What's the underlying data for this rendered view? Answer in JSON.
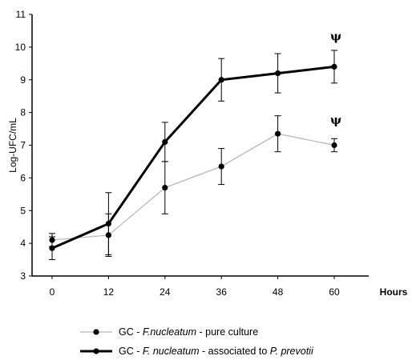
{
  "chart_data": {
    "type": "line",
    "ylabel": "Log-UFC/mL",
    "xlabel": "Hours",
    "x": [
      0,
      12,
      24,
      36,
      48,
      60
    ],
    "x_ticks": [
      "0",
      "12",
      "24",
      "36",
      "48",
      "60"
    ],
    "y_ticks": [
      "3",
      "4",
      "5",
      "6",
      "7",
      "8",
      "9",
      "10",
      "11"
    ],
    "xlim": [
      0,
      60
    ],
    "ylim": [
      3,
      11
    ],
    "grid": false,
    "legend_position": "bottom",
    "series": [
      {
        "name_parts": [
          "GC - ",
          "F.nucleatum",
          " - pure culture"
        ],
        "values": [
          4.1,
          4.25,
          5.7,
          6.35,
          7.35,
          7.0
        ],
        "errors": [
          0.2,
          0.65,
          0.8,
          0.55,
          0.55,
          0.2
        ],
        "color": "#b4b4b4"
      },
      {
        "name_parts": [
          "GC - ",
          "F. nucleatum",
          " - associated to ",
          "P. prevotii"
        ],
        "values": [
          3.85,
          4.6,
          7.1,
          9.0,
          9.2,
          9.4
        ],
        "errors": [
          0.35,
          0.95,
          0.6,
          0.65,
          0.6,
          0.5
        ],
        "color": "#000000"
      }
    ],
    "annotations": [
      {
        "text": "ψ",
        "x": 60,
        "y": 10.2
      },
      {
        "text": "ψ",
        "x": 60,
        "y": 7.65
      }
    ]
  }
}
